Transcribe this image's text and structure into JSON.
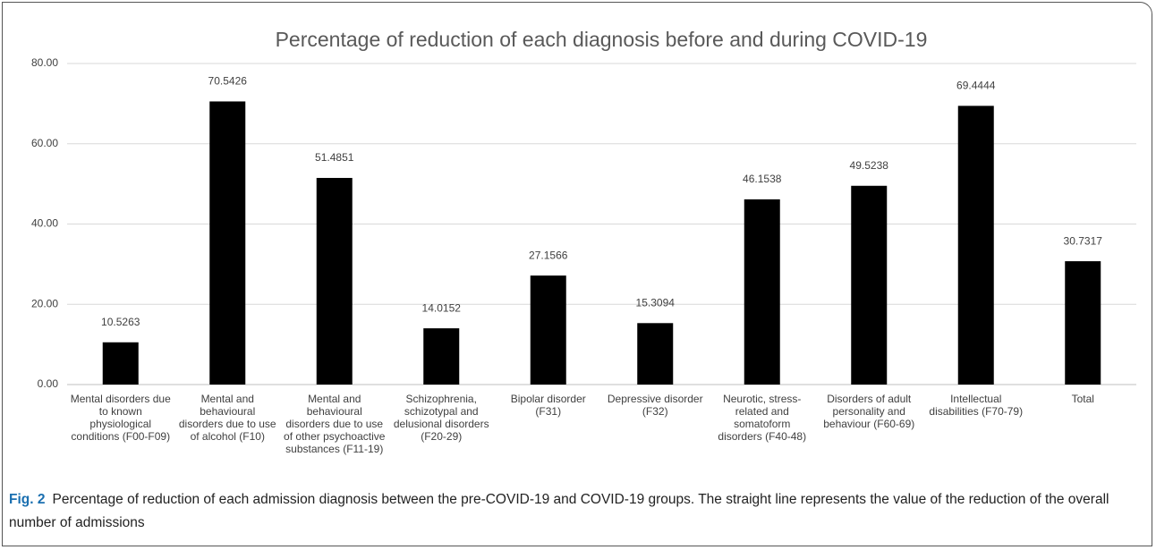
{
  "chart_data": {
    "type": "bar",
    "title": "Percentage of reduction of each diagnosis before and during COVID-19",
    "categories": [
      "Mental disorders due to known physiological conditions (F00-F09)",
      "Mental and behavioural disorders due to use of alcohol (F10)",
      "Mental and behavioural disorders due to use of other psychoactive substances (F11-19)",
      "Schizophrenia, schizotypal and delusional disorders (F20-29)",
      "Bipolar disorder (F31)",
      "Depressive disorder (F32)",
      "Neurotic, stress-related and somatoform disorders (F40-48)",
      "Disorders of adult personality and behaviour (F60-69)",
      "Intellectual disabilities (F70-79)",
      "Total"
    ],
    "values": [
      10.5263,
      70.5426,
      51.4851,
      14.0152,
      27.1566,
      15.3094,
      46.1538,
      49.5238,
      69.4444,
      30.7317
    ],
    "color": "#000000",
    "ylim": [
      0,
      80
    ],
    "yticks": [
      {
        "value": 0,
        "label": "0.00"
      },
      {
        "value": 20,
        "label": "20.00"
      },
      {
        "value": 40,
        "label": "40.00"
      },
      {
        "value": 60,
        "label": "60.00"
      },
      {
        "value": 80,
        "label": "80.00"
      }
    ],
    "grid": true
  },
  "caption": {
    "label": "Fig. 2",
    "text": "Percentage of reduction of each admission diagnosis between the pre-COVID-19 and COVID-19 groups. The straight line represents the value of the reduction of the overall number of admissions"
  }
}
